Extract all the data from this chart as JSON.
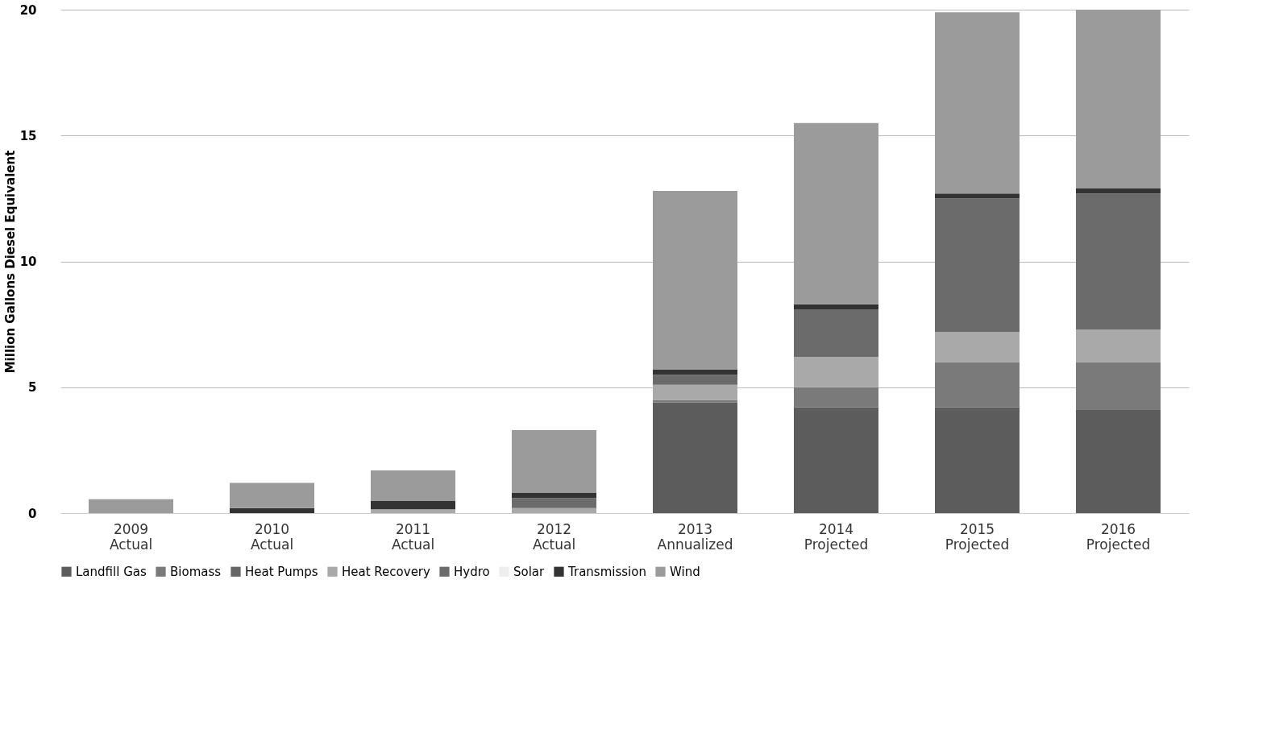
{
  "chart_data": {
    "type": "bar",
    "stacked": true,
    "ylabel": "Million Gallons Diesel Equivalent",
    "categories": [
      "2009 Actual",
      "2010 Actual",
      "2011 Actual",
      "2012 Actual",
      "2013 Annualized",
      "2014 Projected",
      "2015 Projected",
      "2016 Projected"
    ],
    "series": [
      {
        "name": "Landfill Gas",
        "color": "#5c5c5c",
        "values": [
          0,
          0,
          0,
          0,
          4.4,
          4.2,
          4.2,
          4.1
        ]
      },
      {
        "name": "Biomass",
        "color": "#7a7a7a",
        "values": [
          0,
          0,
          0,
          0,
          0.1,
          0.8,
          1.8,
          1.9
        ]
      },
      {
        "name": "Heat Pumps",
        "color": "#666666",
        "values": [
          0,
          0,
          0,
          0,
          0,
          0,
          0,
          0
        ]
      },
      {
        "name": "Heat Recovery",
        "color": "#a9a9a9",
        "values": [
          0,
          0,
          0.15,
          0.2,
          0.6,
          1.2,
          1.2,
          1.3
        ]
      },
      {
        "name": "Hydro",
        "color": "#6b6b6b",
        "values": [
          0,
          0,
          0,
          0.4,
          0.4,
          1.9,
          5.3,
          5.4
        ]
      },
      {
        "name": "Solar",
        "color": "#eeeeee",
        "values": [
          0,
          0,
          0,
          0,
          0,
          0,
          0,
          0
        ]
      },
      {
        "name": "Transmission",
        "color": "#333333",
        "values": [
          0,
          0.2,
          0.35,
          0.2,
          0.2,
          0.2,
          0.2,
          0.2
        ]
      },
      {
        "name": "Wind",
        "color": "#9b9b9b",
        "values": [
          0.55,
          1.0,
          1.2,
          2.5,
          7.1,
          7.2,
          7.2,
          7.1
        ]
      }
    ],
    "ylim": [
      0,
      20
    ],
    "yticks": [
      0,
      5,
      10,
      15,
      20
    ],
    "grid": "y",
    "legend": "bottom"
  }
}
